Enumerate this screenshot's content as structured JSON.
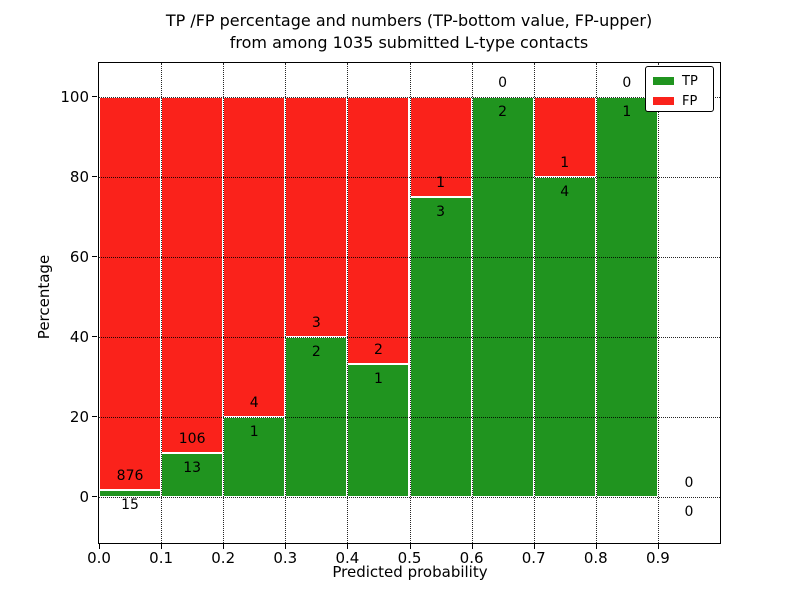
{
  "chart_data": {
    "type": "bar",
    "stacking": "percentage",
    "title": "TP /FP percentage and numbers (TP-bottom value, FP-upper)",
    "subtitle": "from among 1035 submitted L-type contacts",
    "xlabel": "Predicted probability",
    "ylabel": "Percentage",
    "x_tick_labels": [
      "0.0",
      "0.1",
      "0.2",
      "0.3",
      "0.4",
      "0.5",
      "0.6",
      "0.7",
      "0.8",
      "0.9"
    ],
    "y_tick_values": [
      0,
      20,
      40,
      60,
      80,
      100
    ],
    "xlim": [
      0.0,
      1.0
    ],
    "ylim": [
      -11.5,
      108.5
    ],
    "grid": "dotted",
    "legend_position": "upper-right",
    "bin_width": 0.1,
    "total_contacts": 1035,
    "series": [
      {
        "name": "TP",
        "color": "#20941f",
        "counts": [
          15,
          13,
          1,
          2,
          1,
          3,
          2,
          4,
          1,
          0
        ]
      },
      {
        "name": "FP",
        "color": "#fa221b",
        "counts": [
          876,
          106,
          4,
          3,
          2,
          1,
          0,
          1,
          0,
          0
        ]
      }
    ],
    "tp_percentages": [
      1.7,
      10.9,
      20.0,
      40.0,
      33.3,
      75.0,
      100.0,
      80.0,
      100.0,
      null
    ]
  }
}
